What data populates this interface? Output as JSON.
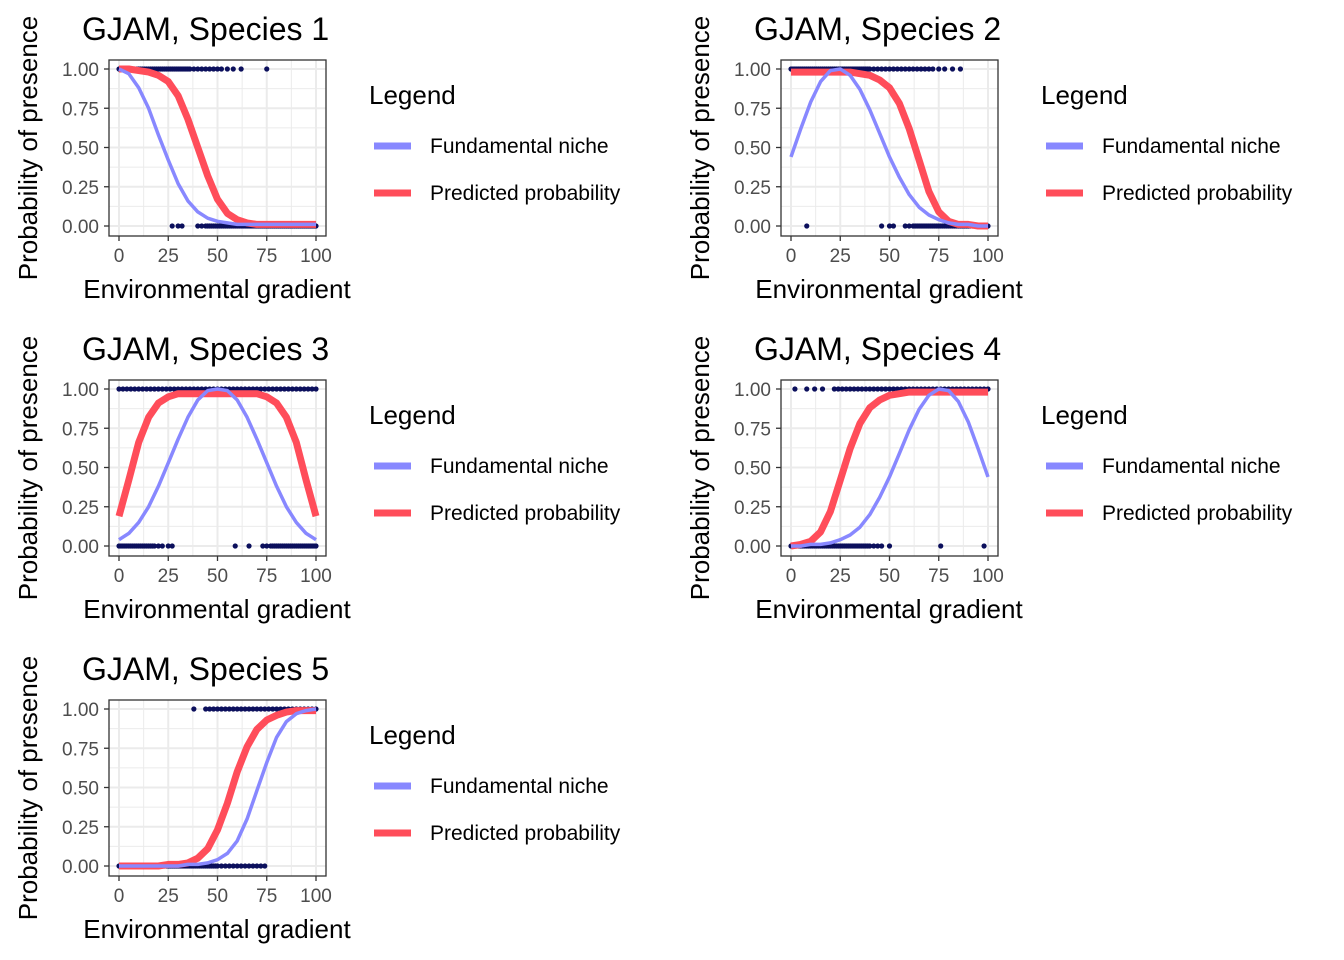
{
  "colors": {
    "fundamental": "#8888ff",
    "predicted": "#ff4d5a",
    "points": "#0b0f5c",
    "panel_border": "#333333",
    "grid": "#ebebeb"
  },
  "legend": {
    "title": "Legend",
    "items": [
      {
        "label": "Fundamental niche",
        "color": "#8888ff"
      },
      {
        "label": "Predicted probability",
        "color": "#ff4d5a"
      }
    ]
  },
  "chart_data": [
    {
      "type": "line",
      "title": "GJAM, Species 1",
      "xlabel": "Environmental gradient",
      "ylabel": "Probability of presence",
      "xlim": [
        0,
        100
      ],
      "ylim": [
        0,
        1
      ],
      "x_ticks": [
        "0",
        "25",
        "50",
        "75",
        "100"
      ],
      "y_ticks": [
        "0.00",
        "0.25",
        "0.50",
        "0.75",
        "1.00"
      ],
      "grid": true,
      "legend_position": "right",
      "series": [
        {
          "name": "Fundamental niche",
          "x": [
            0,
            5,
            10,
            15,
            20,
            25,
            30,
            35,
            40,
            45,
            50,
            55,
            60,
            65,
            70,
            75,
            80,
            85,
            90,
            95,
            100
          ],
          "y": [
            1.0,
            0.97,
            0.88,
            0.75,
            0.58,
            0.42,
            0.27,
            0.16,
            0.09,
            0.05,
            0.03,
            0.02,
            0.01,
            0.01,
            0.01,
            0.01,
            0.01,
            0.01,
            0.01,
            0.01,
            0.01
          ]
        },
        {
          "name": "Predicted probability",
          "x": [
            0,
            5,
            10,
            15,
            20,
            25,
            30,
            35,
            40,
            45,
            50,
            55,
            60,
            65,
            70,
            75,
            80,
            85,
            90,
            95,
            100
          ],
          "y": [
            1.0,
            1.0,
            0.99,
            0.98,
            0.96,
            0.92,
            0.83,
            0.68,
            0.5,
            0.32,
            0.17,
            0.08,
            0.04,
            0.02,
            0.01,
            0.01,
            0.01,
            0.01,
            0.01,
            0.01,
            0.01
          ]
        }
      ],
      "observations": {
        "present_x": [
          0,
          1,
          2,
          3,
          4,
          5,
          6,
          7,
          8,
          9,
          10,
          11,
          12,
          13,
          14,
          15,
          16,
          17,
          18,
          19,
          20,
          21,
          22,
          23,
          24,
          25,
          26,
          27,
          28,
          29,
          30,
          31,
          32,
          33,
          34,
          35,
          36,
          38,
          40,
          42,
          44,
          46,
          48,
          50,
          52,
          55,
          58,
          62,
          75
        ],
        "absent_x": [
          27,
          30,
          32,
          40,
          42,
          44,
          45,
          46,
          47,
          48,
          49,
          50,
          51,
          52,
          53,
          54,
          55,
          56,
          57,
          58,
          59,
          60,
          61,
          62,
          63,
          64,
          65,
          66,
          67,
          68,
          69,
          70,
          71,
          72,
          73,
          74,
          75,
          76,
          77,
          78,
          79,
          80,
          81,
          82,
          83,
          84,
          85,
          86,
          87,
          88,
          89,
          90,
          91,
          92,
          93,
          94,
          95,
          96,
          97,
          98,
          99,
          100
        ]
      }
    },
    {
      "type": "line",
      "title": "GJAM, Species 2",
      "xlabel": "Environmental gradient",
      "ylabel": "Probability of presence",
      "xlim": [
        0,
        100
      ],
      "ylim": [
        0,
        1
      ],
      "x_ticks": [
        "0",
        "25",
        "50",
        "75",
        "100"
      ],
      "y_ticks": [
        "0.00",
        "0.25",
        "0.50",
        "0.75",
        "1.00"
      ],
      "grid": true,
      "legend_position": "right",
      "series": [
        {
          "name": "Fundamental niche",
          "x": [
            0,
            5,
            10,
            15,
            20,
            25,
            30,
            35,
            40,
            45,
            50,
            55,
            60,
            65,
            70,
            75,
            80,
            85,
            90,
            95,
            100
          ],
          "y": [
            0.44,
            0.62,
            0.79,
            0.92,
            0.99,
            1.0,
            0.96,
            0.87,
            0.74,
            0.59,
            0.44,
            0.31,
            0.2,
            0.12,
            0.07,
            0.04,
            0.02,
            0.01,
            0.01,
            0.0,
            0.0
          ]
        },
        {
          "name": "Predicted probability",
          "x": [
            0,
            5,
            10,
            15,
            20,
            25,
            30,
            35,
            40,
            45,
            50,
            55,
            60,
            65,
            70,
            75,
            80,
            85,
            90,
            95,
            100
          ],
          "y": [
            0.98,
            0.98,
            0.98,
            0.98,
            0.98,
            0.98,
            0.98,
            0.97,
            0.96,
            0.93,
            0.88,
            0.78,
            0.62,
            0.42,
            0.22,
            0.09,
            0.03,
            0.01,
            0.01,
            0.0,
            0.0
          ]
        }
      ],
      "observations": {
        "present_x": [
          0,
          1,
          2,
          3,
          4,
          5,
          6,
          7,
          8,
          9,
          10,
          11,
          12,
          13,
          14,
          15,
          16,
          17,
          18,
          19,
          20,
          21,
          22,
          23,
          24,
          25,
          26,
          27,
          28,
          29,
          30,
          31,
          32,
          33,
          34,
          35,
          36,
          37,
          38,
          39,
          40,
          42,
          44,
          46,
          48,
          50,
          52,
          54,
          56,
          58,
          60,
          62,
          64,
          66,
          68,
          70,
          72,
          75,
          78,
          82,
          86
        ],
        "absent_x": [
          8,
          46,
          50,
          52,
          58,
          60,
          62,
          63,
          64,
          65,
          66,
          67,
          68,
          69,
          70,
          71,
          72,
          73,
          74,
          75,
          76,
          77,
          78,
          79,
          80,
          81,
          82,
          83,
          84,
          85,
          86,
          87,
          88,
          89,
          90,
          91,
          92,
          93,
          94,
          95,
          96,
          97,
          98,
          99,
          100
        ]
      }
    },
    {
      "type": "line",
      "title": "GJAM, Species 3",
      "xlabel": "Environmental gradient",
      "ylabel": "Probability of presence",
      "xlim": [
        0,
        100
      ],
      "ylim": [
        0,
        1
      ],
      "x_ticks": [
        "0",
        "25",
        "50",
        "75",
        "100"
      ],
      "y_ticks": [
        "0.00",
        "0.25",
        "0.50",
        "0.75",
        "1.00"
      ],
      "grid": true,
      "legend_position": "right",
      "series": [
        {
          "name": "Fundamental niche",
          "x": [
            0,
            5,
            10,
            15,
            20,
            25,
            30,
            35,
            40,
            45,
            50,
            55,
            60,
            65,
            70,
            75,
            80,
            85,
            90,
            95,
            100
          ],
          "y": [
            0.04,
            0.08,
            0.15,
            0.25,
            0.38,
            0.53,
            0.68,
            0.82,
            0.93,
            0.99,
            1.0,
            0.99,
            0.93,
            0.82,
            0.68,
            0.53,
            0.38,
            0.25,
            0.15,
            0.08,
            0.04
          ]
        },
        {
          "name": "Predicted probability",
          "x": [
            0,
            5,
            10,
            15,
            20,
            25,
            30,
            35,
            40,
            45,
            50,
            55,
            60,
            65,
            70,
            75,
            80,
            85,
            90,
            95,
            100
          ],
          "y": [
            0.19,
            0.42,
            0.66,
            0.82,
            0.91,
            0.95,
            0.97,
            0.97,
            0.97,
            0.97,
            0.97,
            0.97,
            0.97,
            0.97,
            0.97,
            0.95,
            0.91,
            0.82,
            0.66,
            0.42,
            0.19
          ]
        }
      ],
      "observations": {
        "present_x": [
          0,
          2,
          4,
          6,
          8,
          10,
          12,
          14,
          16,
          18,
          20,
          22,
          24,
          26,
          28,
          30,
          32,
          34,
          36,
          38,
          40,
          42,
          44,
          46,
          48,
          50,
          52,
          54,
          56,
          58,
          60,
          62,
          64,
          66,
          68,
          70,
          72,
          74,
          76,
          78,
          80,
          82,
          84,
          86,
          88,
          90,
          92,
          94,
          96,
          98,
          100
        ],
        "absent_x": [
          0,
          1,
          2,
          3,
          4,
          5,
          6,
          7,
          8,
          9,
          10,
          11,
          12,
          13,
          14,
          15,
          16,
          17,
          18,
          20,
          22,
          25,
          27,
          59,
          66,
          73,
          75,
          77,
          78,
          79,
          80,
          81,
          82,
          83,
          84,
          85,
          86,
          87,
          88,
          89,
          90,
          91,
          92,
          93,
          94,
          95,
          96,
          97,
          98,
          99,
          100
        ]
      }
    },
    {
      "type": "line",
      "title": "GJAM, Species 4",
      "xlabel": "Environmental gradient",
      "ylabel": "Probability of presence",
      "xlim": [
        0,
        100
      ],
      "ylim": [
        0,
        1
      ],
      "x_ticks": [
        "0",
        "25",
        "50",
        "75",
        "100"
      ],
      "y_ticks": [
        "0.00",
        "0.25",
        "0.50",
        "0.75",
        "1.00"
      ],
      "grid": true,
      "legend_position": "right",
      "series": [
        {
          "name": "Fundamental niche",
          "x": [
            0,
            5,
            10,
            15,
            20,
            25,
            30,
            35,
            40,
            45,
            50,
            55,
            60,
            65,
            70,
            75,
            80,
            85,
            90,
            95,
            100
          ],
          "y": [
            0.0,
            0.0,
            0.01,
            0.01,
            0.02,
            0.04,
            0.07,
            0.12,
            0.2,
            0.31,
            0.44,
            0.59,
            0.74,
            0.87,
            0.96,
            1.0,
            0.99,
            0.92,
            0.79,
            0.62,
            0.44
          ]
        },
        {
          "name": "Predicted probability",
          "x": [
            0,
            5,
            10,
            15,
            20,
            25,
            30,
            35,
            40,
            45,
            50,
            55,
            60,
            65,
            70,
            75,
            80,
            85,
            90,
            95,
            100
          ],
          "y": [
            0.0,
            0.01,
            0.03,
            0.09,
            0.22,
            0.42,
            0.62,
            0.78,
            0.88,
            0.93,
            0.96,
            0.97,
            0.98,
            0.98,
            0.98,
            0.98,
            0.98,
            0.98,
            0.98,
            0.98,
            0.98
          ]
        }
      ],
      "observations": {
        "present_x": [
          2,
          8,
          12,
          16,
          22,
          24,
          26,
          28,
          30,
          32,
          34,
          36,
          38,
          40,
          42,
          44,
          46,
          48,
          50,
          52,
          54,
          56,
          58,
          60,
          62,
          64,
          66,
          68,
          70,
          72,
          74,
          76,
          78,
          80,
          82,
          84,
          86,
          88,
          90,
          92,
          94,
          96,
          98,
          100
        ],
        "absent_x": [
          0,
          1,
          2,
          3,
          4,
          5,
          6,
          7,
          8,
          9,
          10,
          11,
          12,
          13,
          14,
          15,
          16,
          17,
          18,
          19,
          20,
          21,
          22,
          23,
          24,
          25,
          26,
          27,
          28,
          29,
          30,
          31,
          32,
          33,
          34,
          35,
          36,
          37,
          38,
          39,
          40,
          42,
          44,
          46,
          50,
          76,
          98
        ]
      }
    },
    {
      "type": "line",
      "title": "GJAM, Species 5",
      "xlabel": "Environmental gradient",
      "ylabel": "Probability of presence",
      "xlim": [
        0,
        100
      ],
      "ylim": [
        0,
        1
      ],
      "x_ticks": [
        "0",
        "25",
        "50",
        "75",
        "100"
      ],
      "y_ticks": [
        "0.00",
        "0.25",
        "0.50",
        "0.75",
        "1.00"
      ],
      "grid": true,
      "legend_position": "right",
      "series": [
        {
          "name": "Fundamental niche",
          "x": [
            0,
            5,
            10,
            15,
            20,
            25,
            30,
            35,
            40,
            45,
            50,
            55,
            60,
            65,
            70,
            75,
            80,
            85,
            90,
            95,
            100
          ],
          "y": [
            0.0,
            0.0,
            0.0,
            0.0,
            0.0,
            0.0,
            0.0,
            0.01,
            0.01,
            0.02,
            0.04,
            0.08,
            0.16,
            0.3,
            0.48,
            0.66,
            0.82,
            0.92,
            0.97,
            0.99,
            1.0
          ]
        },
        {
          "name": "Predicted probability",
          "x": [
            0,
            5,
            10,
            15,
            20,
            25,
            30,
            35,
            40,
            45,
            50,
            55,
            60,
            65,
            70,
            75,
            80,
            85,
            90,
            95,
            100
          ],
          "y": [
            0.0,
            0.0,
            0.0,
            0.0,
            0.0,
            0.01,
            0.01,
            0.02,
            0.05,
            0.11,
            0.23,
            0.4,
            0.6,
            0.76,
            0.87,
            0.93,
            0.96,
            0.98,
            0.99,
            0.99,
            0.99
          ]
        }
      ],
      "observations": {
        "present_x": [
          38,
          44,
          46,
          48,
          50,
          52,
          54,
          56,
          58,
          60,
          62,
          64,
          66,
          68,
          70,
          72,
          74,
          76,
          78,
          80,
          82,
          84,
          86,
          88,
          90,
          92,
          94,
          96,
          98,
          100
        ],
        "absent_x": [
          0,
          1,
          2,
          3,
          4,
          5,
          6,
          7,
          8,
          9,
          10,
          11,
          12,
          13,
          14,
          15,
          16,
          17,
          18,
          19,
          20,
          21,
          22,
          23,
          24,
          25,
          26,
          27,
          28,
          29,
          30,
          31,
          32,
          33,
          34,
          35,
          36,
          37,
          38,
          39,
          40,
          41,
          42,
          43,
          44,
          45,
          46,
          47,
          48,
          49,
          50,
          52,
          54,
          56,
          58,
          60,
          62,
          64,
          66,
          68,
          70,
          72,
          74
        ]
      }
    }
  ]
}
